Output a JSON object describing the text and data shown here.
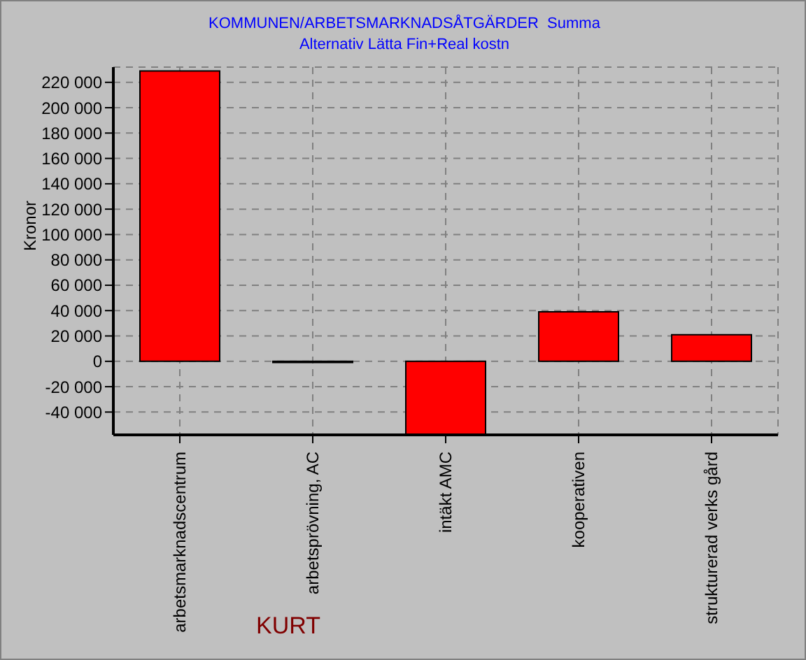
{
  "chart_data": {
    "type": "bar",
    "title": "KOMMUNEN/ARBETSMARKNADSÅTGÄRDER  Summa",
    "subtitle": "Alternativ Lätta Fin+Real kostn",
    "xlabel": "KURT",
    "ylabel": "Kronor",
    "categories": [
      "arbetsmarknadscentrum",
      "arbetsprövning, AC",
      "intäkt AMC",
      "kooperativen",
      "strukturerad verks gård"
    ],
    "values": [
      229000,
      -1000,
      -58000,
      39000,
      21000
    ],
    "color": "#ff0000",
    "ylim": [
      -58000,
      232000
    ],
    "yticks": [
      {
        "value": -40000,
        "label": "-40 000"
      },
      {
        "value": -20000,
        "label": "-20 000"
      },
      0,
      {
        "value": 20000,
        "label": "20 000"
      },
      {
        "value": 40000,
        "label": "40 000"
      },
      {
        "value": 60000,
        "label": "60 000"
      },
      {
        "value": 80000,
        "label": "80 000"
      },
      {
        "value": 100000,
        "label": "100 000"
      },
      {
        "value": 120000,
        "label": "120 000"
      },
      {
        "value": 140000,
        "label": "140 000"
      },
      {
        "value": 160000,
        "label": "160 000"
      },
      {
        "value": 180000,
        "label": "180 000"
      },
      {
        "value": 200000,
        "label": "200 000"
      },
      {
        "value": 220000,
        "label": "220 000"
      }
    ],
    "grid": true
  }
}
